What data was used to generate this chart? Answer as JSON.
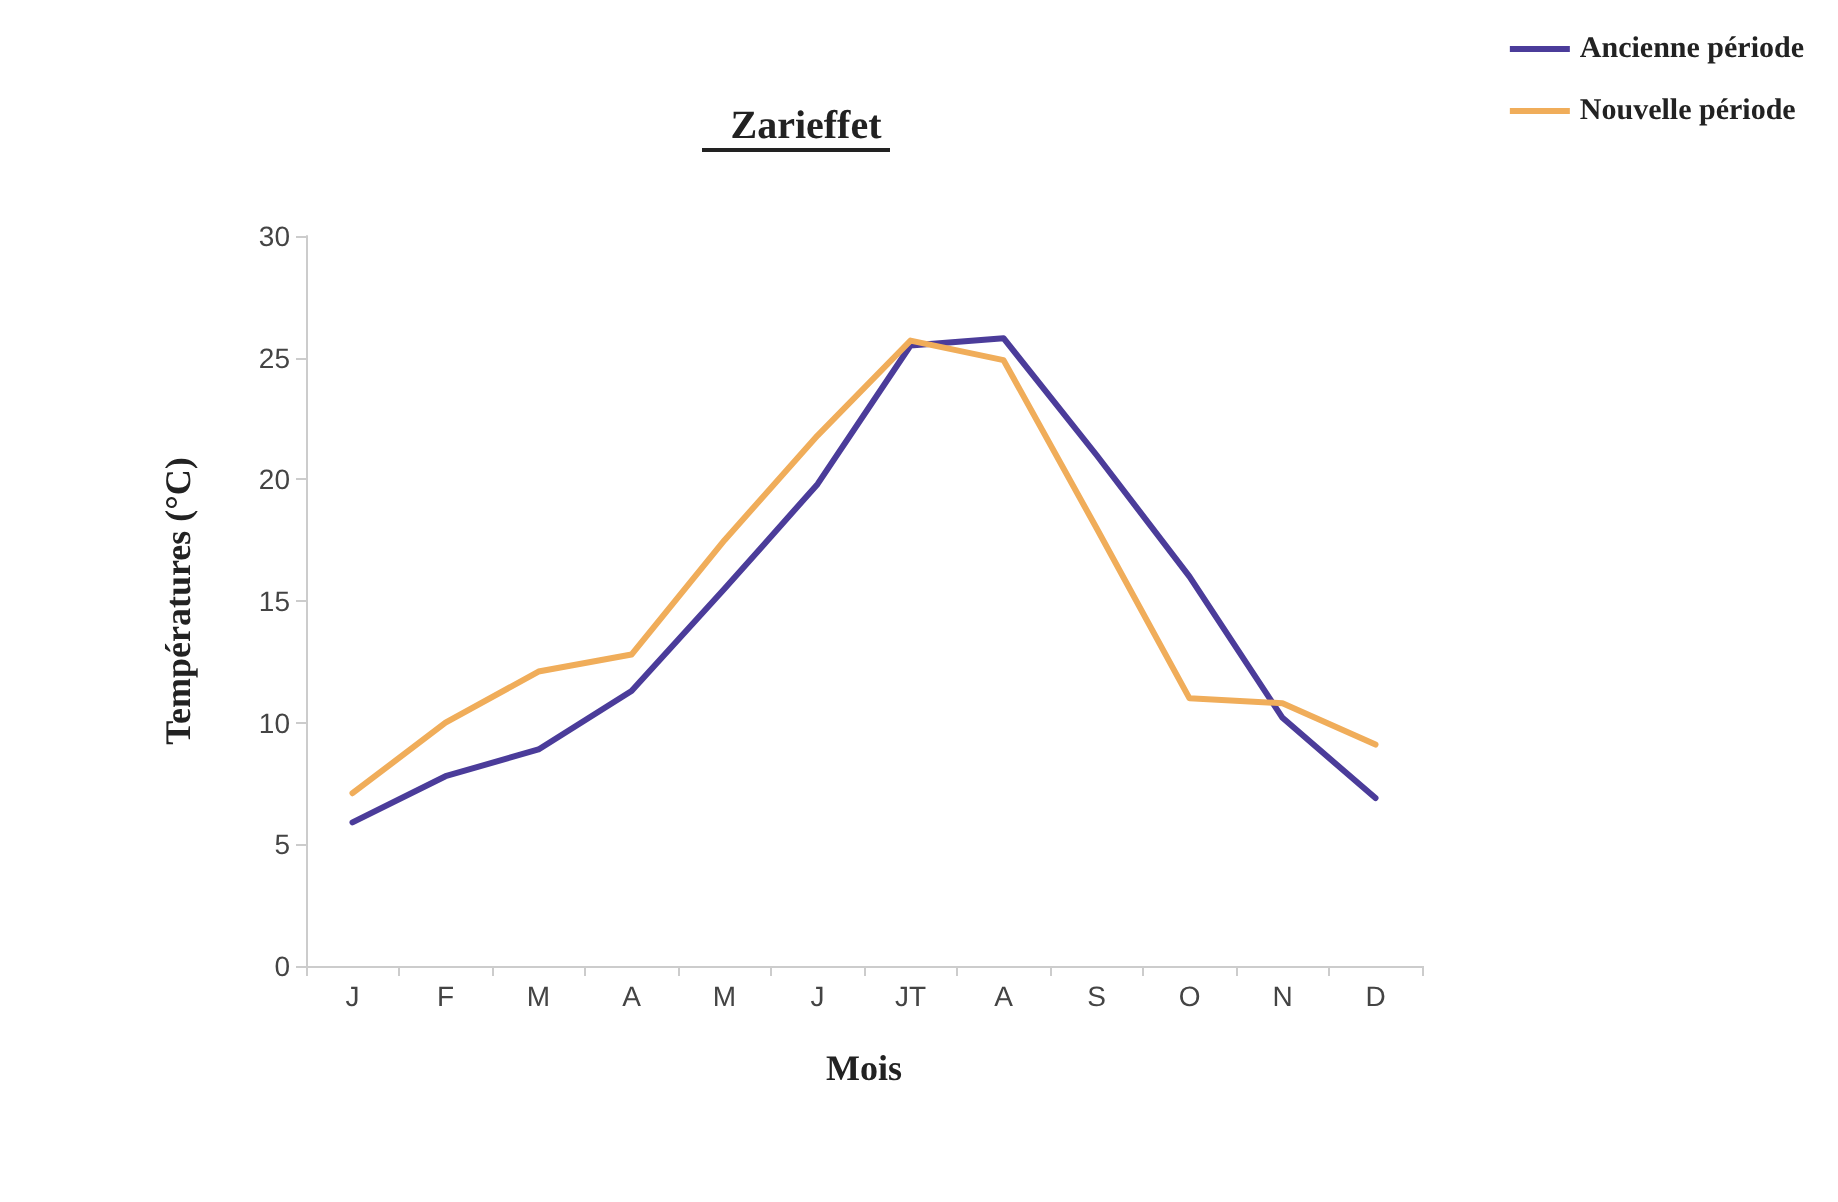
{
  "chart_data": {
    "type": "line",
    "title": "Zarieffet",
    "xlabel": "Mois",
    "ylabel": "Températures (°C)",
    "categories": [
      "J",
      "F",
      "M",
      "A",
      "M",
      "J",
      "JT",
      "A",
      "S",
      "O",
      "N",
      "D"
    ],
    "series": [
      {
        "name": "Ancienne période",
        "color": "#4b3c9a",
        "values": [
          5.9,
          7.8,
          8.9,
          11.3,
          15.5,
          19.8,
          25.5,
          25.8,
          21,
          16,
          10.2,
          6.9
        ]
      },
      {
        "name": "Nouvelle période",
        "color": "#f0ad5a",
        "values": [
          7.1,
          10,
          12.1,
          12.8,
          17.5,
          21.8,
          25.7,
          24.9,
          18,
          11,
          10.8,
          9.1
        ]
      }
    ],
    "ylim": [
      0,
      30
    ],
    "yticks": [
      0,
      5,
      10,
      15,
      20,
      25,
      30
    ],
    "grid": false,
    "legend": "top right",
    "marker": "none",
    "line_style": "solid"
  }
}
